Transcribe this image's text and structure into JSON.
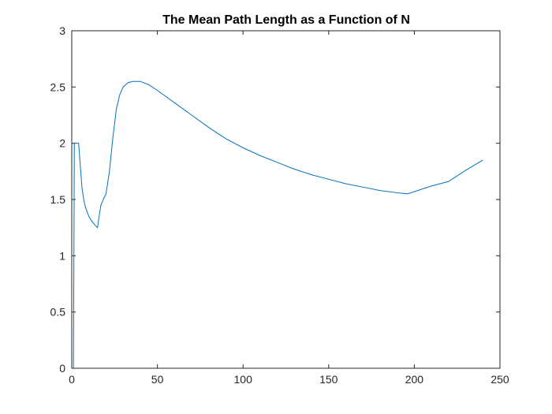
{
  "chart_data": {
    "type": "line",
    "title": "The Mean Path Length as a Function of N",
    "xlabel": "",
    "ylabel": "",
    "xlim": [
      0,
      250
    ],
    "ylim": [
      0,
      3
    ],
    "xticks": [
      "0",
      "50",
      "100",
      "150",
      "200",
      "250"
    ],
    "yticks": [
      "0",
      "0.5",
      "1",
      "1.5",
      "2",
      "2.5",
      "3"
    ],
    "grid": false,
    "box": true,
    "colors": {
      "line": "#0072BD",
      "axes": "#262626",
      "background": "#ffffff"
    },
    "series": [
      {
        "x": [
          1,
          1.5,
          2,
          3,
          4,
          5,
          6,
          7,
          8,
          10,
          12,
          15,
          17,
          19,
          20,
          22,
          24,
          26,
          28,
          30,
          33,
          36,
          40,
          45,
          50,
          60,
          70,
          80,
          90,
          100,
          110,
          120,
          130,
          140,
          150,
          160,
          170,
          180,
          190,
          196,
          200,
          210,
          220,
          230,
          240
        ],
        "y": [
          0,
          2.0,
          2.0,
          2.0,
          2.0,
          1.8,
          1.6,
          1.5,
          1.43,
          1.35,
          1.3,
          1.25,
          1.45,
          1.52,
          1.55,
          1.75,
          2.05,
          2.3,
          2.43,
          2.5,
          2.54,
          2.55,
          2.55,
          2.52,
          2.47,
          2.36,
          2.25,
          2.14,
          2.04,
          1.96,
          1.89,
          1.83,
          1.77,
          1.72,
          1.68,
          1.64,
          1.61,
          1.58,
          1.56,
          1.55,
          1.57,
          1.62,
          1.66,
          1.76,
          1.85
        ]
      }
    ]
  }
}
